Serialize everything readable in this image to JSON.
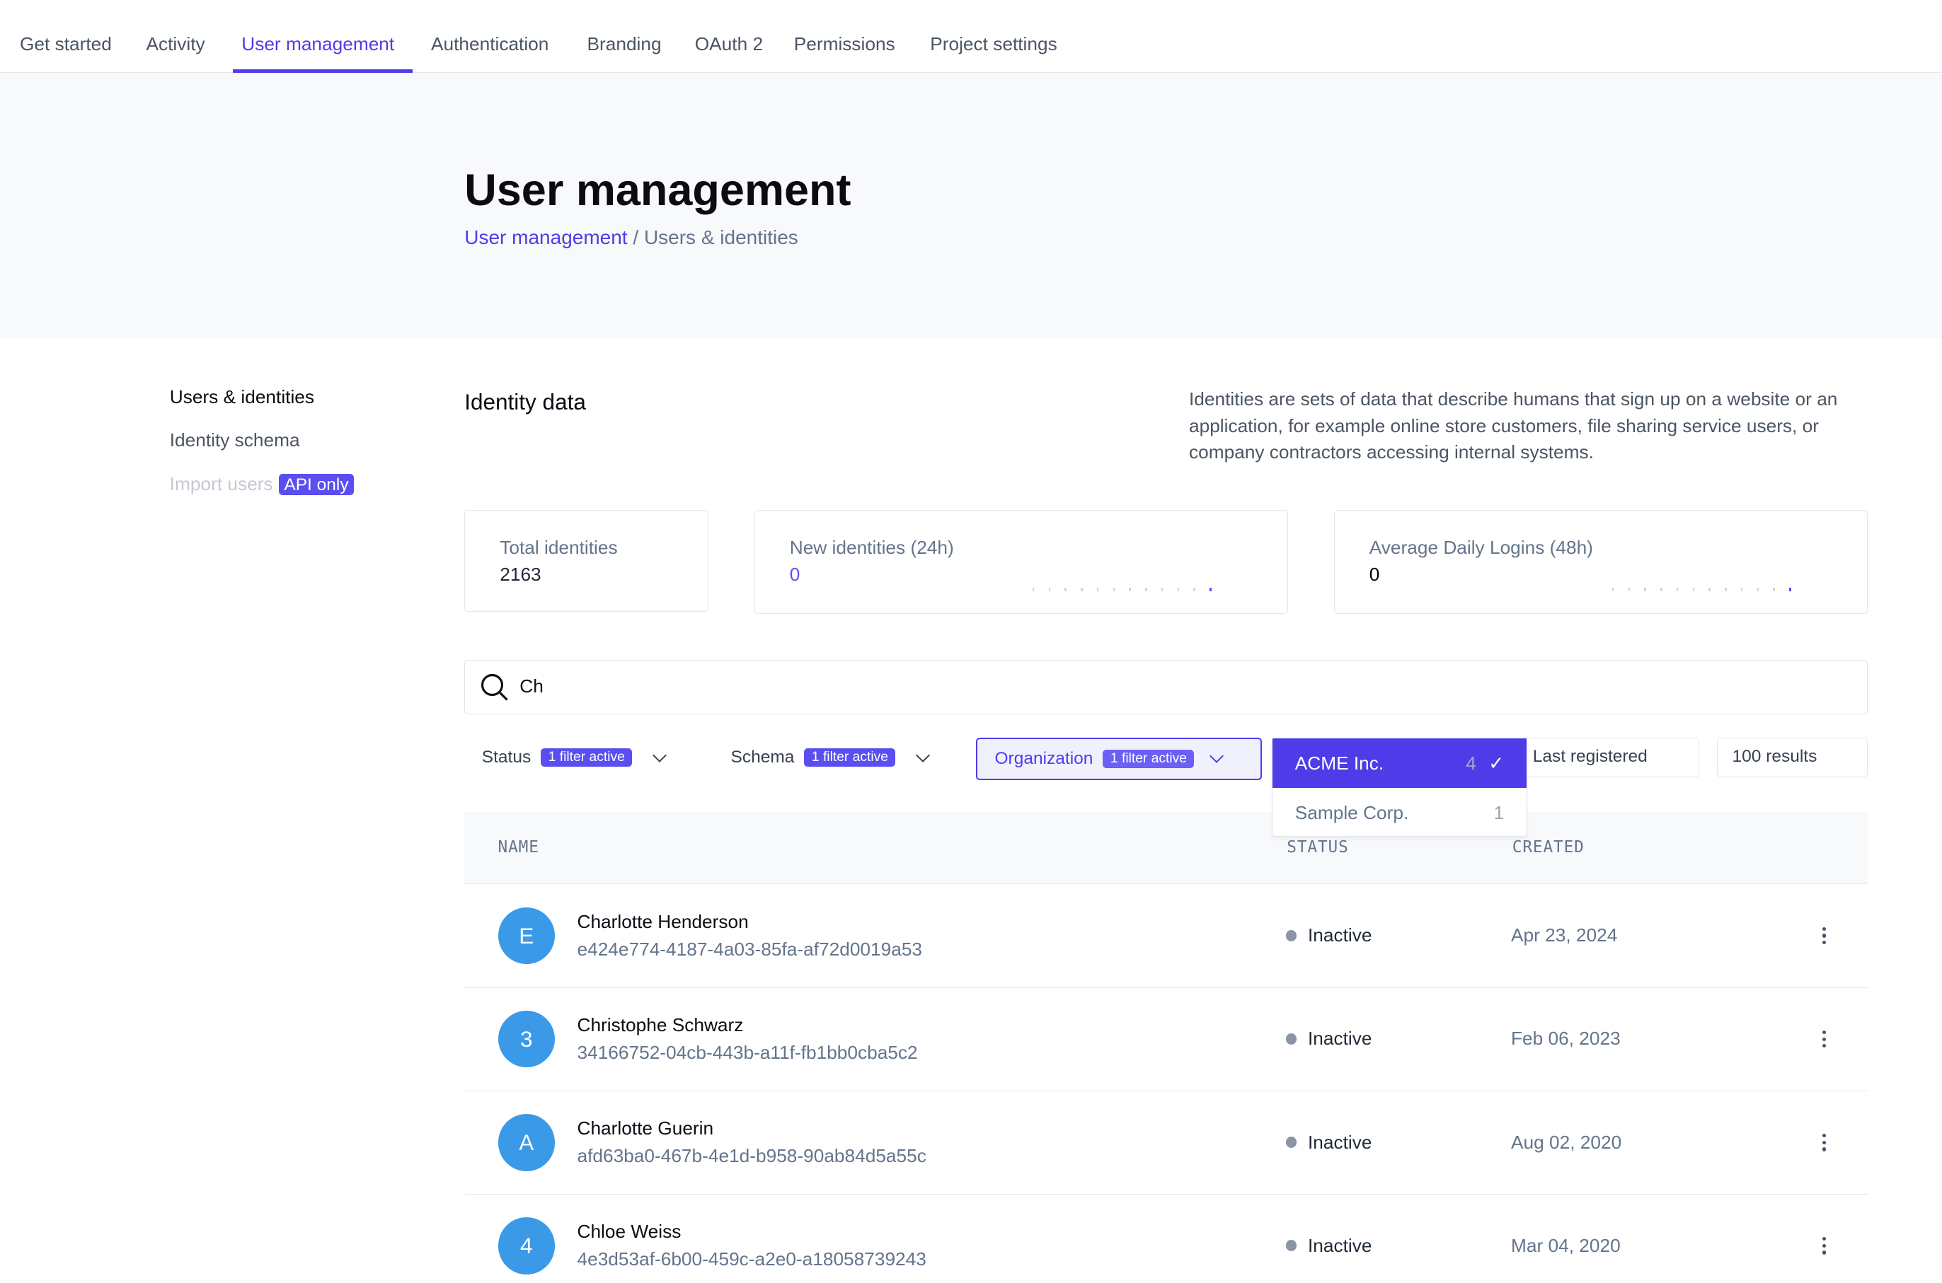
{
  "tabs": [
    {
      "label": "Get started"
    },
    {
      "label": "Activity"
    },
    {
      "label": "User management",
      "active": true
    },
    {
      "label": "Authentication"
    },
    {
      "label": "Branding"
    },
    {
      "label": "OAuth 2"
    },
    {
      "label": "Permissions"
    },
    {
      "label": "Project settings"
    }
  ],
  "header": {
    "title": "User management",
    "breadcrumb": {
      "link": "User management",
      "sep": "/",
      "current": "Users & identities"
    }
  },
  "sidebar": {
    "items": [
      {
        "label": "Users & identities"
      },
      {
        "label": "Identity schema"
      },
      {
        "label": "Import users",
        "badge": "API only"
      }
    ]
  },
  "section": {
    "title": "Identity data",
    "description": "Identities are sets of data that describe humans that sign up on a website or an application, for example online store customers, file sharing service users, or company contractors accessing internal systems."
  },
  "stats": [
    {
      "label": "Total identities",
      "value": "2163"
    },
    {
      "label": "New identities (24h)",
      "value": "0",
      "sparkline": [
        0,
        0,
        0,
        0,
        0,
        0,
        0,
        0,
        0,
        0,
        0,
        0
      ]
    },
    {
      "label": "Average Daily Logins (48h)",
      "value": "0",
      "sparkline": [
        0,
        0,
        0,
        0,
        0,
        0,
        0,
        0,
        0,
        0,
        0,
        0
      ]
    }
  ],
  "search": {
    "value": "Ch",
    "icon": "search-icon"
  },
  "filters": {
    "status": {
      "label": "Status",
      "badge": "1 filter active"
    },
    "schema": {
      "label": "Schema",
      "badge": "1 filter active"
    },
    "organization": {
      "label": "Organization",
      "badge": "1 filter active"
    },
    "sort": "Last registered",
    "results": "100 results"
  },
  "org_dropdown": [
    {
      "label": "ACME Inc.",
      "count": "4",
      "selected": true
    },
    {
      "label": "Sample Corp.",
      "count": "1"
    }
  ],
  "table": {
    "headers": {
      "name": "NAME",
      "status": "STATUS",
      "created": "CREATED"
    },
    "rows": [
      {
        "initial": "E",
        "name": "Charlotte Henderson",
        "id": "e424e774-4187-4a03-85fa-af72d0019a53",
        "status": "Inactive",
        "created": "Apr 23, 2024"
      },
      {
        "initial": "3",
        "name": "Christophe Schwarz",
        "id": "34166752-04cb-443b-a11f-fb1bb0cba5c2",
        "status": "Inactive",
        "created": "Feb 06, 2023"
      },
      {
        "initial": "A",
        "name": "Charlotte Guerin",
        "id": "afd63ba0-467b-4e1d-b958-90ab84d5a55c",
        "status": "Inactive",
        "created": "Aug 02, 2020"
      },
      {
        "initial": "4",
        "name": "Chloe Weiss",
        "id": "4e3d53af-6b00-459c-a2e0-a18058739243",
        "status": "Inactive",
        "created": "Mar 04, 2020"
      }
    ]
  },
  "colors": {
    "accent": "#4f3ce8",
    "avatar": "#3b9ae8",
    "inactive": "#8b95a5"
  }
}
